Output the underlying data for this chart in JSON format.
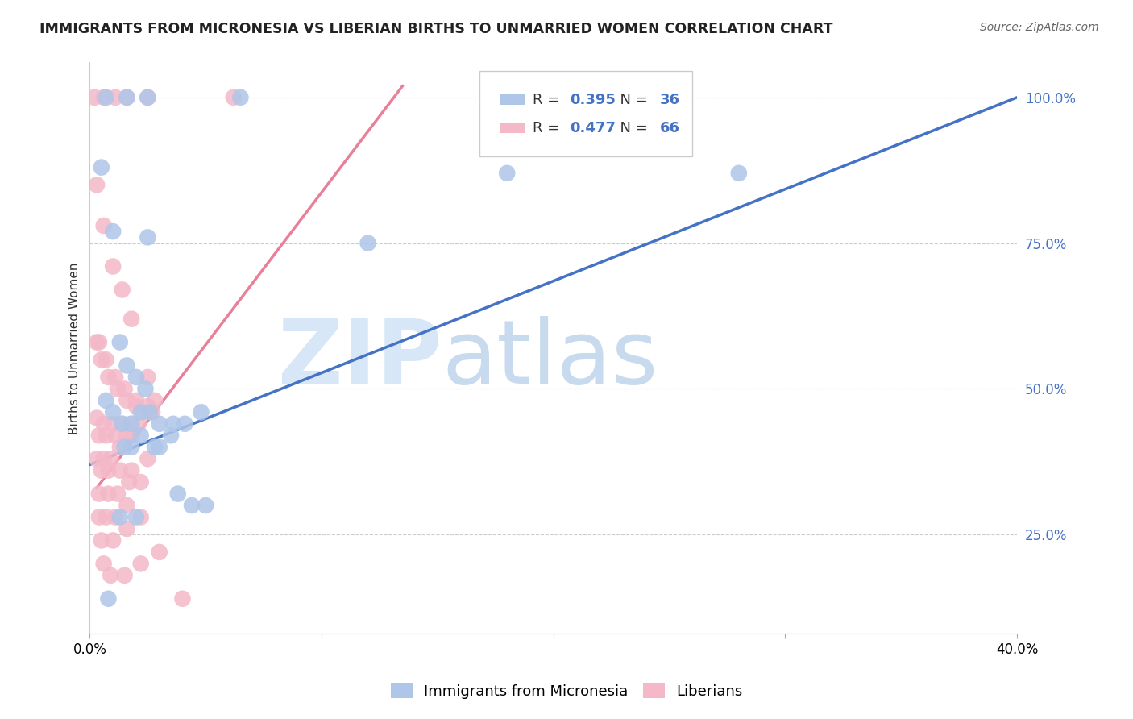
{
  "title": "IMMIGRANTS FROM MICRONESIA VS LIBERIAN BIRTHS TO UNMARRIED WOMEN CORRELATION CHART",
  "source": "Source: ZipAtlas.com",
  "ylabel": "Births to Unmarried Women",
  "xlim": [
    0.0,
    0.4
  ],
  "ylim": [
    0.08,
    1.06
  ],
  "xticks": [
    0.0,
    0.1,
    0.2,
    0.3,
    0.4
  ],
  "xticklabels": [
    "0.0%",
    "",
    "",
    "",
    "40.0%"
  ],
  "yticks": [
    0.25,
    0.5,
    0.75,
    1.0
  ],
  "yticklabels": [
    "25.0%",
    "50.0%",
    "75.0%",
    "100.0%"
  ],
  "blue_R": 0.395,
  "blue_N": 36,
  "pink_R": 0.477,
  "pink_N": 66,
  "blue_color": "#aec6e8",
  "pink_color": "#f4b8c8",
  "blue_line_color": "#4472c4",
  "pink_line_color": "#e8809a",
  "stat_color": "#4472c4",
  "watermark_zip": "ZIP",
  "watermark_atlas": "atlas",
  "legend_label_blue": "Immigrants from Micronesia",
  "legend_label_pink": "Liberians",
  "blue_trend_x": [
    0.0,
    0.4
  ],
  "blue_trend_y": [
    0.37,
    1.0
  ],
  "pink_trend_x": [
    0.003,
    0.135
  ],
  "pink_trend_y": [
    0.33,
    1.02
  ],
  "blue_scatter_x": [
    0.007,
    0.016,
    0.025,
    0.065,
    0.005,
    0.01,
    0.013,
    0.016,
    0.02,
    0.024,
    0.007,
    0.01,
    0.014,
    0.018,
    0.022,
    0.026,
    0.03,
    0.036,
    0.041,
    0.048,
    0.025,
    0.03,
    0.015,
    0.018,
    0.022,
    0.028,
    0.035,
    0.18,
    0.28,
    0.038,
    0.044,
    0.05,
    0.013,
    0.02,
    0.12,
    0.008
  ],
  "blue_scatter_y": [
    1.0,
    1.0,
    1.0,
    1.0,
    0.88,
    0.77,
    0.58,
    0.54,
    0.52,
    0.5,
    0.48,
    0.46,
    0.44,
    0.44,
    0.46,
    0.46,
    0.44,
    0.44,
    0.44,
    0.46,
    0.76,
    0.4,
    0.4,
    0.4,
    0.42,
    0.4,
    0.42,
    0.87,
    0.87,
    0.32,
    0.3,
    0.3,
    0.28,
    0.28,
    0.75,
    0.14
  ],
  "pink_scatter_x": [
    0.002,
    0.006,
    0.011,
    0.016,
    0.025,
    0.062,
    0.003,
    0.006,
    0.01,
    0.014,
    0.018,
    0.003,
    0.005,
    0.008,
    0.012,
    0.016,
    0.02,
    0.025,
    0.004,
    0.007,
    0.011,
    0.015,
    0.02,
    0.025,
    0.003,
    0.006,
    0.01,
    0.014,
    0.018,
    0.023,
    0.028,
    0.004,
    0.007,
    0.011,
    0.016,
    0.021,
    0.027,
    0.003,
    0.006,
    0.009,
    0.013,
    0.018,
    0.005,
    0.008,
    0.013,
    0.018,
    0.025,
    0.004,
    0.008,
    0.012,
    0.017,
    0.022,
    0.004,
    0.007,
    0.011,
    0.016,
    0.005,
    0.01,
    0.016,
    0.022,
    0.006,
    0.009,
    0.015,
    0.022,
    0.03,
    0.04
  ],
  "pink_scatter_y": [
    1.0,
    1.0,
    1.0,
    1.0,
    1.0,
    1.0,
    0.85,
    0.78,
    0.71,
    0.67,
    0.62,
    0.58,
    0.55,
    0.52,
    0.5,
    0.48,
    0.47,
    0.52,
    0.58,
    0.55,
    0.52,
    0.5,
    0.48,
    0.47,
    0.45,
    0.44,
    0.44,
    0.44,
    0.44,
    0.46,
    0.48,
    0.42,
    0.42,
    0.42,
    0.42,
    0.44,
    0.46,
    0.38,
    0.38,
    0.38,
    0.4,
    0.42,
    0.36,
    0.36,
    0.36,
    0.36,
    0.38,
    0.32,
    0.32,
    0.32,
    0.34,
    0.34,
    0.28,
    0.28,
    0.28,
    0.3,
    0.24,
    0.24,
    0.26,
    0.28,
    0.2,
    0.18,
    0.18,
    0.2,
    0.22,
    0.14
  ]
}
